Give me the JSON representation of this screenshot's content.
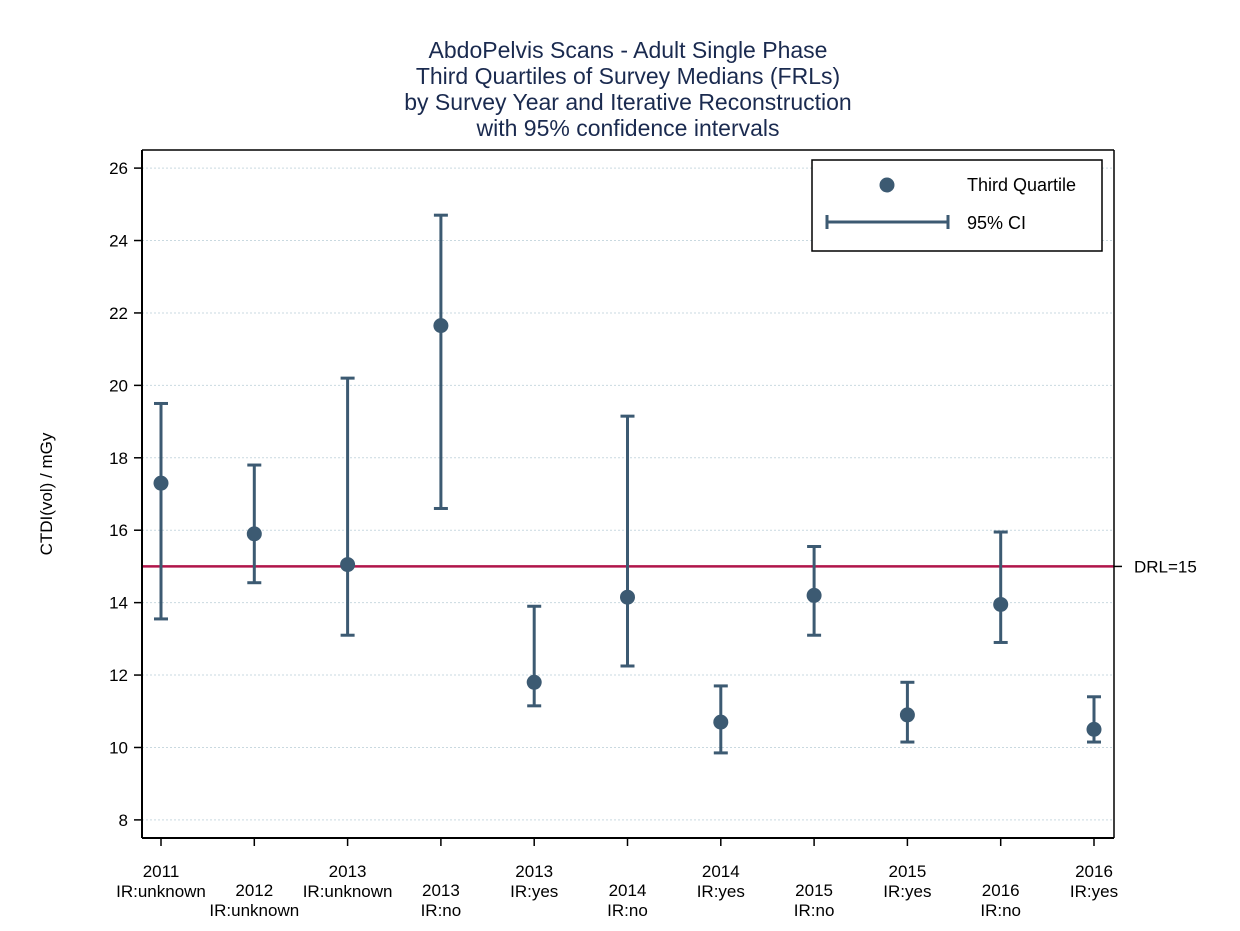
{
  "chart_data": {
    "type": "scatter",
    "title_lines": [
      "AbdoPelvis Scans - Adult Single Phase",
      "Third Quartiles of Survey Medians (FRLs)",
      "by Survey Year and Iterative Reconstruction",
      "with 95% confidence intervals"
    ],
    "ylabel": "CTDI(vol) / mGy",
    "xlabel": "",
    "ylim": [
      7.5,
      26.5
    ],
    "yticks": [
      8,
      10,
      12,
      14,
      16,
      18,
      20,
      22,
      24,
      26
    ],
    "grid": true,
    "legend_position": "top-right",
    "legend": {
      "point_label": "Third Quartile",
      "ci_label": "95% CI"
    },
    "reference_line": {
      "value": 15,
      "label": "DRL=15",
      "color": "#b0154a"
    },
    "colors": {
      "series": "#3c5a72",
      "title": "#1a2a4f",
      "grid": "#c9d9e0"
    },
    "categories": [
      {
        "year": "2011",
        "ir": "IR:unknown",
        "level": "upper"
      },
      {
        "year": "2012",
        "ir": "IR:unknown",
        "level": "lower"
      },
      {
        "year": "2013",
        "ir": "IR:unknown",
        "level": "upper"
      },
      {
        "year": "2013",
        "ir": "IR:no",
        "level": "lower"
      },
      {
        "year": "2013",
        "ir": "IR:yes",
        "level": "upper"
      },
      {
        "year": "2014",
        "ir": "IR:no",
        "level": "lower"
      },
      {
        "year": "2014",
        "ir": "IR:yes",
        "level": "upper"
      },
      {
        "year": "2015",
        "ir": "IR:no",
        "level": "lower"
      },
      {
        "year": "2015",
        "ir": "IR:yes",
        "level": "upper"
      },
      {
        "year": "2016",
        "ir": "IR:no",
        "level": "lower"
      },
      {
        "year": "2016",
        "ir": "IR:yes",
        "level": "upper"
      }
    ],
    "series": [
      {
        "name": "Third Quartile",
        "values": [
          17.3,
          15.9,
          15.05,
          21.65,
          11.8,
          14.15,
          10.7,
          14.2,
          10.9,
          13.95,
          10.5
        ],
        "ci_low": [
          13.55,
          14.55,
          13.1,
          16.6,
          11.15,
          12.25,
          9.85,
          13.1,
          10.15,
          12.9,
          10.15
        ],
        "ci_high": [
          19.5,
          17.8,
          20.2,
          24.7,
          13.9,
          19.15,
          11.7,
          15.55,
          11.8,
          15.95,
          11.4
        ]
      }
    ]
  }
}
